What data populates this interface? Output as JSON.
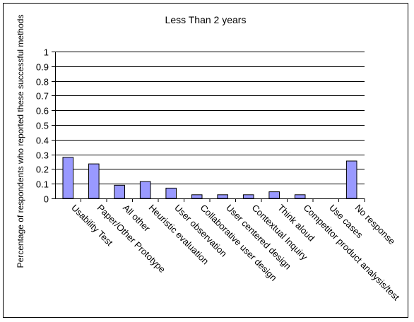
{
  "chart_data": {
    "type": "bar",
    "title": "Less Than 2 years",
    "ylabel": "Percentage of respondents who reported these successful methods",
    "xlabel": "",
    "ylim": [
      0,
      1
    ],
    "yticks": [
      "0",
      "0.1",
      "0.2",
      "0.3",
      "0.4",
      "0.5",
      "0.6",
      "0.7",
      "0.8",
      "0.9",
      "1"
    ],
    "grid": true,
    "legend": "none",
    "categories": [
      "Usability Test",
      "Paper/Other Prototype",
      "All other",
      "Heuristic evaluation",
      "User observation",
      "Collaborative user design",
      "User centered design",
      "Contextual Inquiry",
      "Think aloud",
      "Competitor product analysis/test",
      "Use cases",
      "No response"
    ],
    "values": [
      0.28,
      0.235,
      0.09,
      0.115,
      0.07,
      0.025,
      0.025,
      0.025,
      0.045,
      0.025,
      0,
      0.255
    ],
    "bar_color": "#9999ff",
    "bar_edge_color": "#000000"
  }
}
